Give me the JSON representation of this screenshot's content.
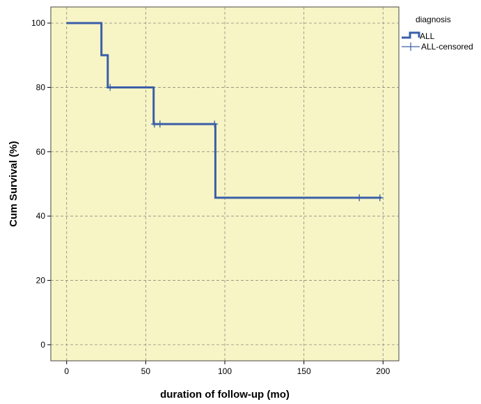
{
  "chart_data": {
    "type": "line",
    "title": "",
    "xlabel": "duration of follow-up (mo)",
    "ylabel": "Cum Survival (%)",
    "xlim": [
      -10,
      210
    ],
    "ylim": [
      -5,
      105
    ],
    "xticks": [
      0,
      50,
      100,
      150,
      200
    ],
    "yticks": [
      0,
      20,
      40,
      60,
      80,
      100
    ],
    "grid": true,
    "plot_background": "#f7f5c6",
    "legend": {
      "title": "diagnosis",
      "placement": "top-right outside",
      "entries": [
        "ALL",
        "ALL-censored"
      ]
    },
    "series": [
      {
        "name": "ALL",
        "style": "step",
        "color": "#3a5fa8",
        "x": [
          0,
          22,
          22,
          26,
          26,
          55,
          55,
          94,
          94,
          199
        ],
        "y": [
          100,
          100,
          90,
          90,
          80,
          80,
          68.6,
          68.6,
          45.7,
          45.7
        ]
      },
      {
        "name": "ALL-censored",
        "style": "markers",
        "marker": "+",
        "color": "#3a5fa8",
        "x": [
          27.5,
          55.5,
          59,
          93.5,
          185,
          198
        ],
        "y": [
          80,
          68.6,
          68.6,
          68.6,
          45.7,
          45.7
        ]
      }
    ]
  }
}
